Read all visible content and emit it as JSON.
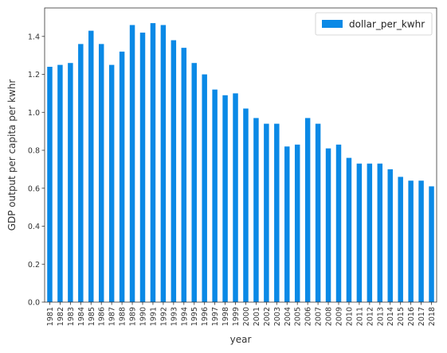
{
  "chart_data": {
    "type": "bar",
    "categories": [
      "1981",
      "1982",
      "1983",
      "1984",
      "1985",
      "1986",
      "1987",
      "1988",
      "1989",
      "1990",
      "1991",
      "1992",
      "1993",
      "1994",
      "1995",
      "1996",
      "1997",
      "1998",
      "1999",
      "2000",
      "2001",
      "2002",
      "2003",
      "2004",
      "2005",
      "2006",
      "2007",
      "2008",
      "2009",
      "2010",
      "2011",
      "2012",
      "2013",
      "2014",
      "2015",
      "2016",
      "2017",
      "2018"
    ],
    "series": [
      {
        "name": "dollar_per_kwhr",
        "values": [
          1.24,
          1.25,
          1.26,
          1.36,
          1.43,
          1.36,
          1.25,
          1.32,
          1.46,
          1.42,
          1.47,
          1.46,
          1.38,
          1.34,
          1.26,
          1.2,
          1.12,
          1.09,
          1.1,
          1.02,
          0.97,
          0.94,
          0.94,
          0.82,
          0.83,
          0.97,
          0.94,
          0.81,
          0.83,
          0.76,
          0.73,
          0.73,
          0.73,
          0.7,
          0.66,
          0.64,
          0.64,
          0.61
        ]
      }
    ],
    "title": "",
    "xlabel": "year",
    "ylabel": "GDP output per capita per kwhr",
    "ylim": [
      0,
      1.55
    ],
    "yticks": [
      "0.0",
      "0.2",
      "0.4",
      "0.6",
      "0.8",
      "1.0",
      "1.2",
      "1.4"
    ],
    "bar_color": "#0a89e6",
    "legend_position": "top-right",
    "grid": false
  }
}
